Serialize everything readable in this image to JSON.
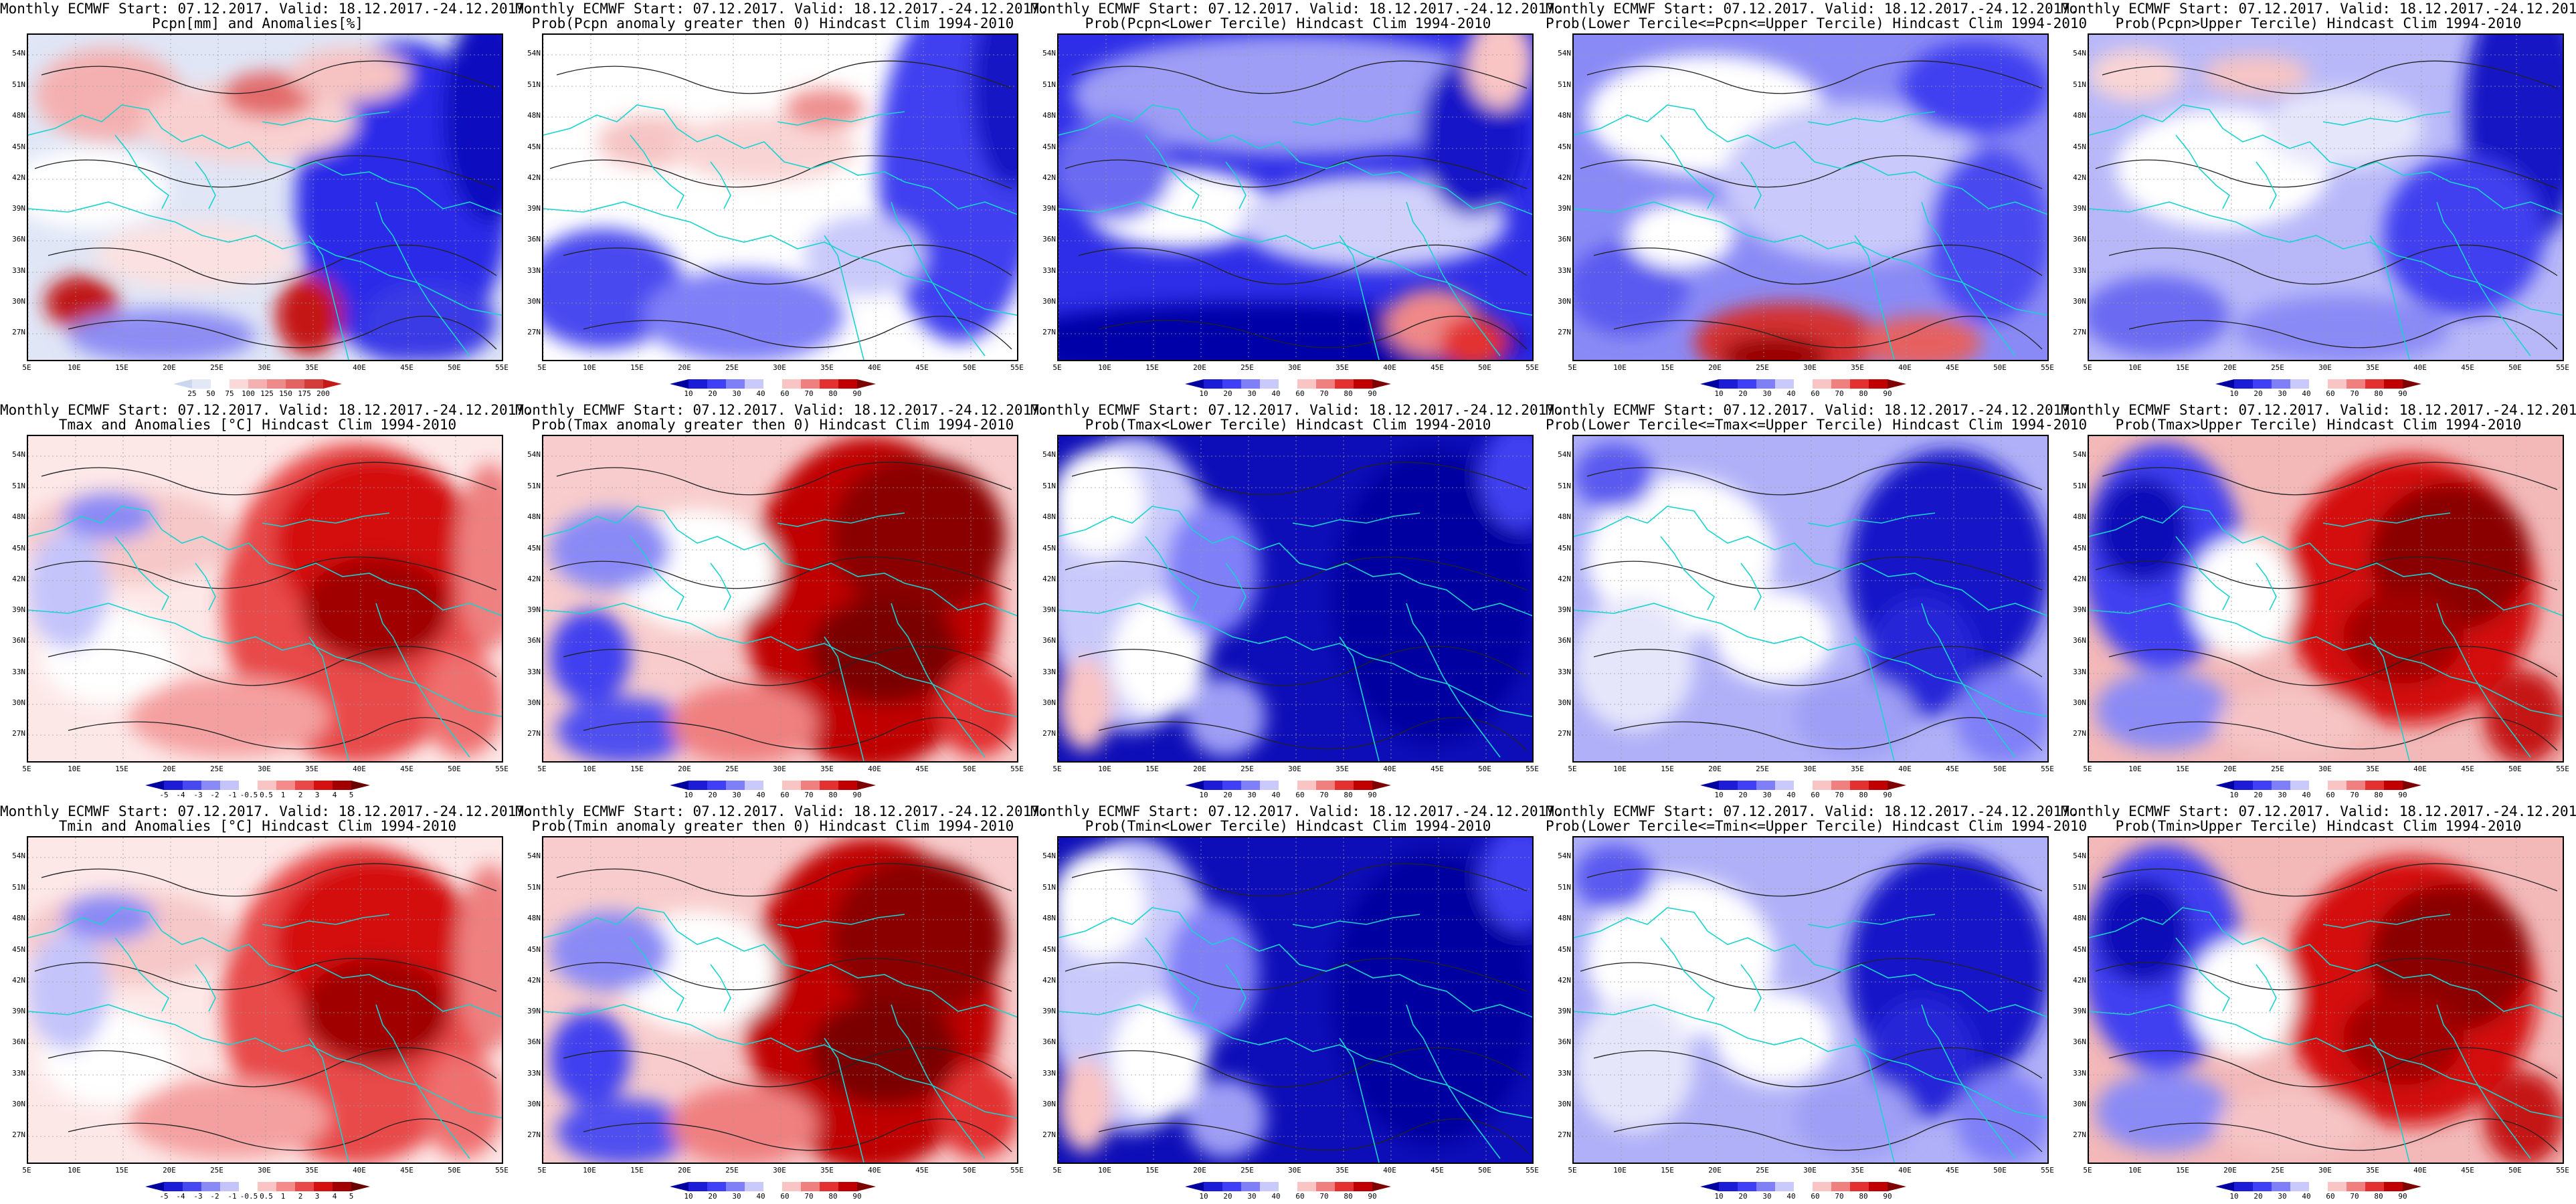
{
  "title_prefix": "Monthly ECMWF Start: 07.12.2017. Valid: 18.12.2017.-24.12.2017.",
  "lat_labels": [
    "54N",
    "51N",
    "48N",
    "45N",
    "42N",
    "39N",
    "36N",
    "33N",
    "30N",
    "27N"
  ],
  "lon_labels": [
    "5E",
    "10E",
    "15E",
    "20E",
    "25E",
    "30E",
    "35E",
    "40E",
    "45E",
    "50E",
    "55E"
  ],
  "colorbars": {
    "precip_anom": {
      "colors": [
        "#c9d6ee",
        "#e2e8f5",
        "#ffffff",
        "#fbd9d9",
        "#f5b1b1",
        "#ee8a8a",
        "#e36363",
        "#d43c3c",
        "#c51818"
      ],
      "labels": [
        "25",
        "50",
        "75",
        "100",
        "125",
        "150",
        "175",
        "200"
      ]
    },
    "prob": {
      "colors": [
        "#0000a0",
        "#1c1cd6",
        "#3f3ff5",
        "#7f7ff8",
        "#c9c9fb",
        "#ffffff",
        "#f9c4c4",
        "#f08080",
        "#e33030",
        "#c00000",
        "#7f0000"
      ],
      "labels": [
        "10",
        "20",
        "30",
        "40",
        "60",
        "70",
        "80",
        "90"
      ]
    },
    "temp_anom": {
      "colors": [
        "#0000a0",
        "#1c1cd6",
        "#4848f0",
        "#8a8af6",
        "#c4c4fb",
        "#ffffff",
        "#fbc4c4",
        "#f58a8a",
        "#e84848",
        "#d41010",
        "#a00000",
        "#6a0000"
      ],
      "labels": [
        "-5",
        "-4",
        "-3",
        "-2",
        "-1",
        "-0.5",
        "0.5",
        "1",
        "2",
        "3",
        "4",
        "5"
      ]
    }
  },
  "panels": [
    {
      "line2": "Pcpn[mm] and Anomalies[%]",
      "colorbar": "precip_anom",
      "fill": "precip"
    },
    {
      "line2": "Prob(Pcpn anomaly greater then 0) Hindcast Clim 1994-2010",
      "colorbar": "prob",
      "fill": "pprob"
    },
    {
      "line2": "Prob(Pcpn<Lower Tercile) Hindcast Clim 1994-2010",
      "colorbar": "prob",
      "fill": "plow"
    },
    {
      "line2": "Prob(Lower Tercile<=Pcpn<=Upper Tercile) Hindcast Clim 1994-2010",
      "colorbar": "prob",
      "fill": "pmid"
    },
    {
      "line2": "Prob(Pcpn>Upper Tercile) Hindcast Clim 1994-2010",
      "colorbar": "prob",
      "fill": "pup"
    },
    {
      "line2": "Tmax and Anomalies [°C] Hindcast Clim 1994-2010",
      "colorbar": "temp_anom",
      "fill": "tanom"
    },
    {
      "line2": "Prob(Tmax anomaly greater then 0) Hindcast Clim 1994-2010",
      "colorbar": "prob",
      "fill": "tpos"
    },
    {
      "line2": "Prob(Tmax<Lower Tercile) Hindcast Clim 1994-2010",
      "colorbar": "prob",
      "fill": "tlow"
    },
    {
      "line2": "Prob(Lower Tercile<=Tmax<=Upper Tercile) Hindcast Clim 1994-2010",
      "colorbar": "prob",
      "fill": "tmid"
    },
    {
      "line2": "Prob(Tmax>Upper Tercile) Hindcast Clim 1994-2010",
      "colorbar": "prob",
      "fill": "tup"
    },
    {
      "line2": "Tmin and Anomalies [°C] Hindcast Clim 1994-2010",
      "colorbar": "temp_anom",
      "fill": "tanom"
    },
    {
      "line2": "Prob(Tmin anomaly greater then 0) Hindcast Clim 1994-2010",
      "colorbar": "prob",
      "fill": "tpos"
    },
    {
      "line2": "Prob(Tmin<Lower Tercile) Hindcast Clim 1994-2010",
      "colorbar": "prob",
      "fill": "tlow"
    },
    {
      "line2": "Prob(Lower Tercile<=Tmin<=Upper Tercile) Hindcast Clim 1994-2010",
      "colorbar": "prob",
      "fill": "tmid"
    },
    {
      "line2": "Prob(Tmin>Upper Tercile) Hindcast Clim 1994-2010",
      "colorbar": "prob",
      "fill": "tup"
    }
  ]
}
